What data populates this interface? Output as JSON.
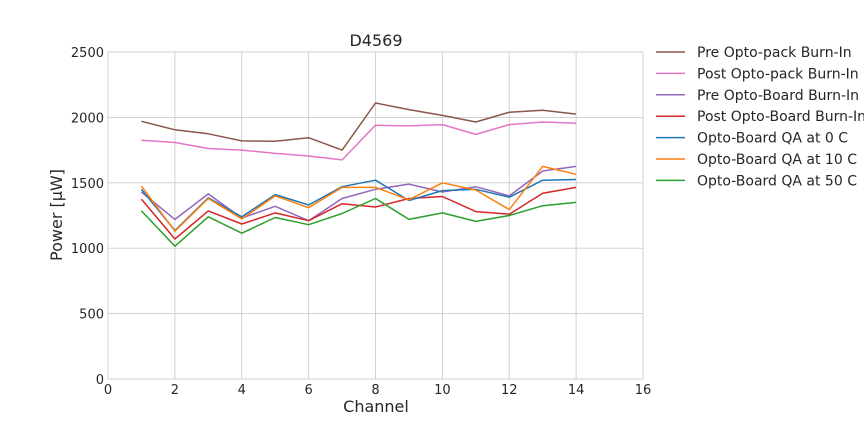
{
  "chart_data": {
    "type": "line",
    "title": "D4569",
    "xlabel": "Channel",
    "ylabel": "Power [μW]",
    "xlim": [
      0,
      16
    ],
    "ylim": [
      0,
      2500
    ],
    "xticks": [
      0,
      2,
      4,
      6,
      8,
      10,
      12,
      14,
      16
    ],
    "yticks": [
      0,
      500,
      1000,
      1500,
      2000,
      2500
    ],
    "grid": true,
    "legend_position": "outside-right",
    "x": [
      1,
      2,
      3,
      4,
      5,
      6,
      7,
      8,
      9,
      10,
      11,
      12,
      13,
      14
    ],
    "series": [
      {
        "name": "Pre Opto-pack Burn-In",
        "color": "#8c564b",
        "values": [
          1970,
          1905,
          1875,
          1820,
          1818,
          1845,
          1750,
          2110,
          2060,
          2015,
          1965,
          2040,
          2055,
          2025
        ]
      },
      {
        "name": "Post Opto-pack Burn-In",
        "color": "#e377c2",
        "values": [
          1825,
          1808,
          1762,
          1750,
          1725,
          1705,
          1675,
          1940,
          1935,
          1945,
          1870,
          1945,
          1965,
          1955
        ]
      },
      {
        "name": "Pre Opto-Board Burn-In",
        "color": "#9467bd",
        "values": [
          1430,
          1220,
          1415,
          1230,
          1320,
          1210,
          1380,
          1450,
          1490,
          1430,
          1470,
          1400,
          1590,
          1625
        ]
      },
      {
        "name": "Post Opto-Board Burn-In",
        "color": "#d62728",
        "values": [
          1375,
          1070,
          1285,
          1185,
          1270,
          1210,
          1340,
          1315,
          1380,
          1395,
          1280,
          1260,
          1420,
          1465
        ]
      },
      {
        "name": "Opto-Board QA at 0 C",
        "color": "#1f77b4",
        "values": [
          1450,
          1135,
          1385,
          1240,
          1410,
          1330,
          1470,
          1520,
          1365,
          1440,
          1450,
          1390,
          1520,
          1525
        ]
      },
      {
        "name": "Opto-Board QA at 10 C",
        "color": "#ff7f0e",
        "values": [
          1475,
          1130,
          1380,
          1225,
          1400,
          1310,
          1465,
          1465,
          1370,
          1500,
          1445,
          1295,
          1625,
          1565
        ]
      },
      {
        "name": "Opto-Board QA at 50 C",
        "color": "#2ca02c",
        "values": [
          1285,
          1015,
          1240,
          1115,
          1235,
          1180,
          1265,
          1380,
          1220,
          1270,
          1205,
          1250,
          1325,
          1350
        ]
      }
    ]
  }
}
